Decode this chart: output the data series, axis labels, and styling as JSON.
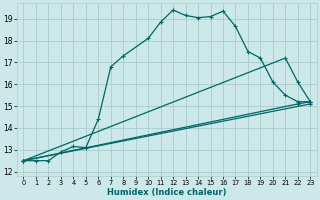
{
  "xlabel": "Humidex (Indice chaleur)",
  "bg_color": "#cce8e8",
  "grid_color": "#aacccc",
  "line_color": "#006666",
  "xlim": [
    -0.5,
    23.5
  ],
  "ylim": [
    11.8,
    19.7
  ],
  "yticks": [
    12,
    13,
    14,
    15,
    16,
    17,
    18,
    19
  ],
  "xticks": [
    0,
    1,
    2,
    3,
    4,
    5,
    6,
    7,
    8,
    9,
    10,
    11,
    12,
    13,
    14,
    15,
    16,
    17,
    18,
    19,
    20,
    21,
    22,
    23
  ],
  "series1_x": [
    0,
    1,
    2,
    3,
    4,
    5,
    6,
    7,
    8,
    10,
    11,
    12,
    13,
    14,
    15,
    16,
    17,
    18,
    19,
    20,
    21,
    22,
    23
  ],
  "series1_y": [
    12.5,
    12.5,
    12.5,
    12.9,
    13.15,
    13.1,
    14.4,
    16.8,
    17.3,
    18.1,
    18.85,
    19.4,
    19.15,
    19.05,
    19.1,
    19.35,
    18.65,
    17.5,
    17.2,
    16.1,
    15.5,
    15.2,
    15.2
  ],
  "series2_x": [
    0,
    21,
    22,
    23
  ],
  "series2_y": [
    12.5,
    17.2,
    16.1,
    15.2
  ],
  "series3_x": [
    0,
    22,
    23
  ],
  "series3_y": [
    12.5,
    15.1,
    15.2
  ],
  "series4_x": [
    0,
    23
  ],
  "series4_y": [
    12.5,
    15.1
  ]
}
